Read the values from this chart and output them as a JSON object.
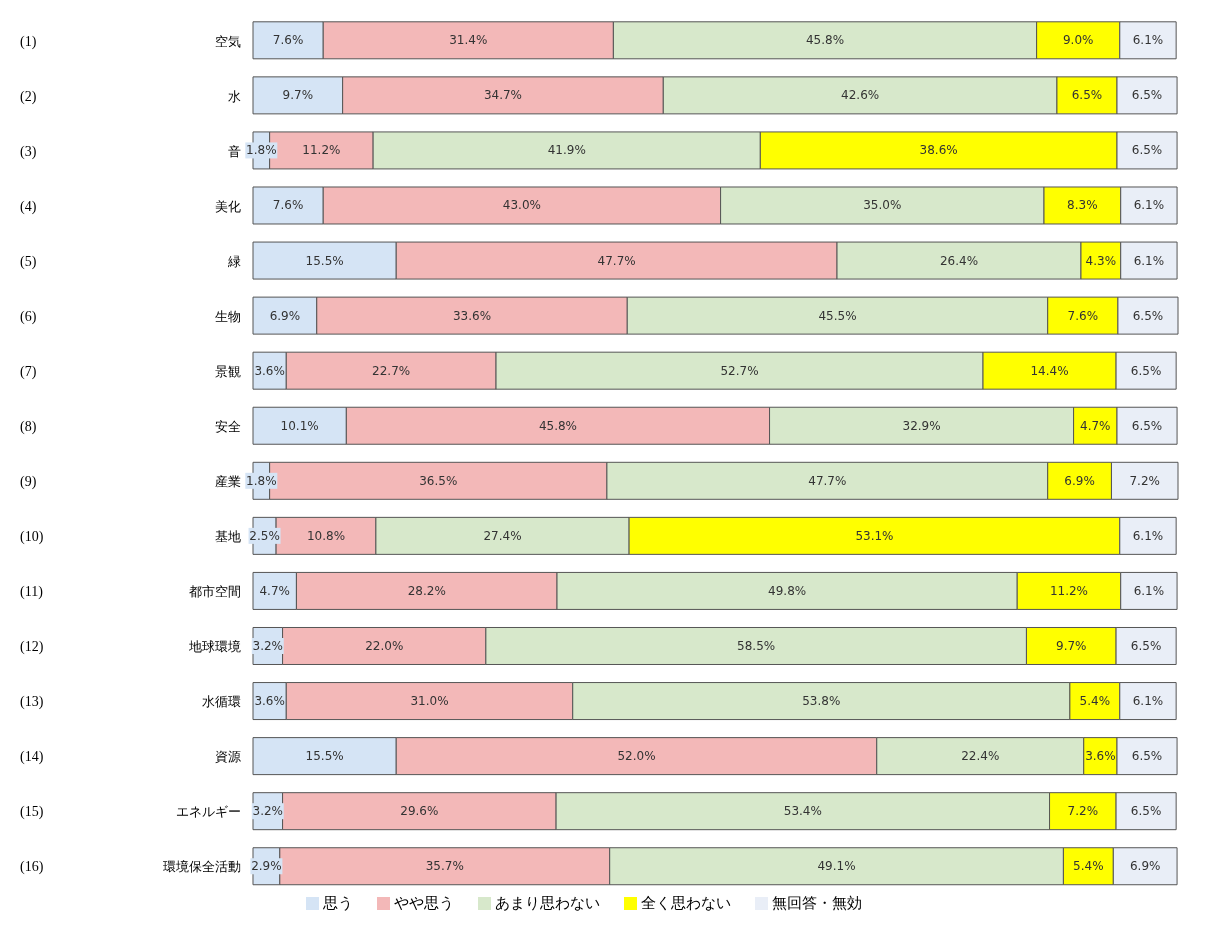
{
  "chart_data": {
    "type": "bar",
    "orientation": "horizontal",
    "stacked": true,
    "legend": "bottom",
    "categories": [
      "(1) 空気",
      "(2) 水",
      "(3) 音",
      "(4) 美化",
      "(5) 緑",
      "(6) 生物",
      "(7) 景観",
      "(8) 安全",
      "(9) 産業",
      "(10) 基地",
      "(11) 都市空間",
      "(12) 地球環境",
      "(13) 水循環",
      "(14) 資源",
      "(15) エネルギー",
      "(16) 環境保全活動"
    ],
    "series": [
      {
        "name": "思う",
        "color": "#d5e4f5",
        "values": [
          7.6,
          9.7,
          1.8,
          7.6,
          15.5,
          6.9,
          3.6,
          10.1,
          1.8,
          2.5,
          4.7,
          3.2,
          3.6,
          15.5,
          3.2,
          2.9
        ],
        "value_labels": [
          "7.6%",
          "9.7%",
          "1.8%",
          "7.6%",
          "15.5%",
          "6.9%",
          "3.6%",
          "10.1%",
          "1.8%",
          "2.5%",
          "4.7%",
          "3.2%",
          "3.6%",
          "15.5%",
          "3.2%",
          "2.9%"
        ]
      },
      {
        "name": "やや思う",
        "color": "#f3b8b8",
        "values": [
          31.4,
          34.7,
          11.2,
          43.0,
          47.7,
          33.6,
          22.7,
          45.8,
          36.5,
          10.8,
          28.2,
          22.0,
          31.0,
          52.0,
          29.6,
          35.7
        ],
        "value_labels": [
          "31.4%",
          "34.7%",
          "11.2%",
          "43.0%",
          "47.7%",
          "33.6%",
          "22.7%",
          "45.8%",
          "36.5%",
          "10.8%",
          "28.2%",
          "22.0%",
          "31.0%",
          "52.0%",
          "29.6%",
          "35.7%"
        ]
      },
      {
        "name": "あまり思わない",
        "color": "#d7e8cb",
        "values": [
          45.8,
          42.6,
          41.9,
          35.0,
          26.4,
          45.5,
          52.7,
          32.9,
          47.7,
          27.4,
          49.8,
          58.5,
          53.8,
          22.4,
          53.4,
          49.1
        ],
        "value_labels": [
          "45.8%",
          "42.6%",
          "41.9%",
          "35.0%",
          "26.4%",
          "45.5%",
          "52.7%",
          "32.9%",
          "47.7%",
          "27.4%",
          "49.8%",
          "58.5%",
          "53.8%",
          "22.4%",
          "53.4%",
          "49.1%"
        ]
      },
      {
        "name": "全く思わない",
        "color": "#ffff00",
        "values": [
          9.0,
          6.5,
          38.6,
          8.3,
          4.3,
          7.6,
          14.4,
          4.7,
          6.9,
          53.1,
          11.2,
          9.7,
          5.4,
          3.6,
          7.2,
          5.4
        ],
        "value_labels": [
          "9.0%",
          "6.5%",
          "38.6%",
          "8.3%",
          "4.3%",
          "7.6%",
          "14.4%",
          "4.7%",
          "6.9%",
          "53.1%",
          "11.2%",
          "9.7%",
          "5.4%",
          "3.6%",
          "7.2%",
          "5.4%"
        ]
      },
      {
        "name": "無回答・無効",
        "color": "#e9eef7",
        "values": [
          6.1,
          6.5,
          6.5,
          6.1,
          6.1,
          6.5,
          6.5,
          6.5,
          7.2,
          6.1,
          6.1,
          6.5,
          6.1,
          6.5,
          6.5,
          6.9
        ],
        "value_labels": [
          "6.1%",
          "6.5%",
          "6.5%",
          "6.1%",
          "6.1%",
          "6.5%",
          "6.5%",
          "6.5%",
          "7.2%",
          "6.1%",
          "6.1%",
          "6.5%",
          "6.1%",
          "6.5%",
          "6.5%",
          "6.9%"
        ]
      }
    ]
  }
}
